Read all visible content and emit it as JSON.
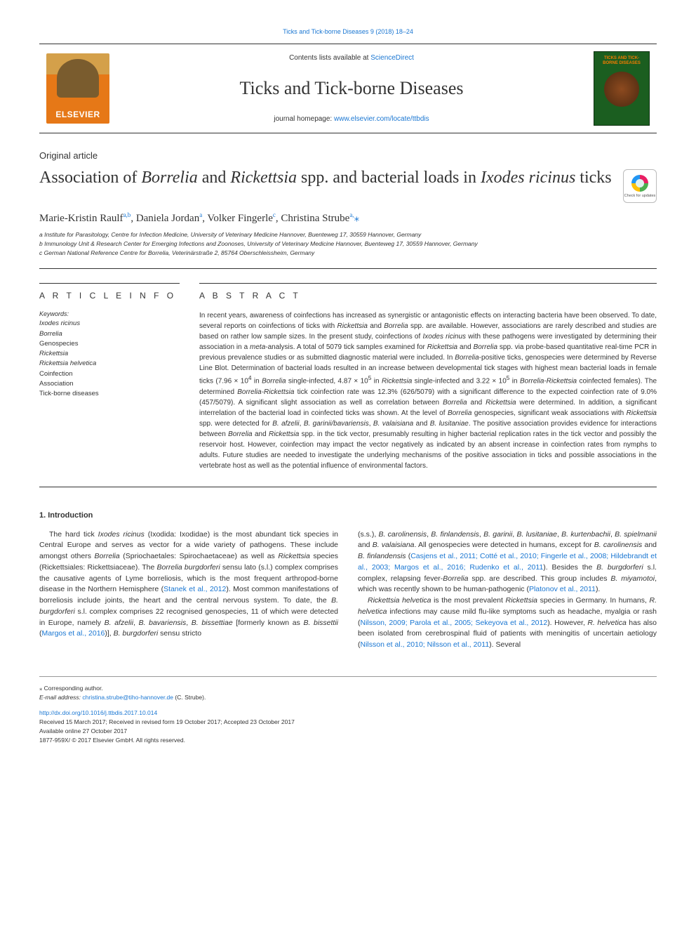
{
  "colors": {
    "link": "#1976d2",
    "text": "#333333",
    "rule": "#333333",
    "elsevier_orange": "#e67817",
    "cover_green": "#1b5e20",
    "cover_accent": "#f57c00"
  },
  "header": {
    "citation": "Ticks and Tick-borne Diseases 9 (2018) 18–24",
    "contents_prefix": "Contents lists available at ",
    "contents_link": "ScienceDirect",
    "journal_title": "Ticks and Tick-borne Diseases",
    "homepage_prefix": "journal homepage: ",
    "homepage_link": "www.elsevier.com/locate/ttbdis",
    "elsevier_label": "ELSEVIER",
    "cover_label": "TICKS AND TICK-BORNE DISEASES"
  },
  "article": {
    "type": "Original article",
    "title_html": "Association of <span class='italic'>Borrelia</span> and <span class='italic'>Rickettsia</span> spp. and bacterial loads in <span class='italic'>Ixodes ricinus</span> ticks",
    "crossmark_label": "Check for updates",
    "authors_html": "Marie-Kristin Raulf<sup>a,b</sup>, Daniela Jordan<sup>a</sup>, Volker Fingerle<sup>c</sup>, Christina Strube<sup>a,</sup><span class='corr'>⁎</span>",
    "affiliations": [
      "a Institute for Parasitology, Centre for Infection Medicine, University of Veterinary Medicine Hannover, Buenteweg 17, 30559 Hannover, Germany",
      "b Immunology Unit & Research Center for Emerging Infections and Zoonoses, University of Veterinary Medicine Hannover, Buenteweg 17, 30559 Hannover, Germany",
      "c German National Reference Centre for Borrelia, Veterinärstraße 2, 85764 Oberschleissheim, Germany"
    ]
  },
  "info": {
    "heading": "A R T I C L E  I N F O",
    "keywords_label": "Keywords:",
    "keywords": [
      "Ixodes ricinus",
      "Borrelia",
      "Genospecies",
      "Rickettsia",
      "Rickettsia helvetica",
      "Coinfection",
      "Association",
      "Tick-borne diseases"
    ]
  },
  "abstract": {
    "heading": "A B S T R A C T",
    "text_html": "In recent years, awareness of coinfections has increased as synergistic or antagonistic effects on interacting bacteria have been observed. To date, several reports on coinfections of ticks with <span class='italic'>Rickettsia</span> and <span class='italic'>Borrelia</span> spp. are available. However, associations are rarely described and studies are based on rather low sample sizes. In the present study, coinfections of <span class='italic'>Ixodes ricinus</span> with these pathogens were investigated by determining their association in a <span class='italic'>meta</span>-analysis. A total of 5079 tick samples examined for <span class='italic'>Rickettsia</span> and <span class='italic'>Borrelia</span> spp. via probe-based quantitative real-time PCR in previous prevalence studies or as submitted diagnostic material were included. In <span class='italic'>Borrelia</span>-positive ticks, genospecies were determined by Reverse Line Blot. Determination of bacterial loads resulted in an increase between developmental tick stages with highest mean bacterial loads in female ticks (7.96 × 10<sup>4</sup> in <span class='italic'>Borrelia</span> single-infected, 4.87 × 10<sup>5</sup> in <span class='italic'>Rickettsia</span> single-infected and 3.22 × 10<sup>5</sup> in <span class='italic'>Borrelia-Rickettsia</span> coinfected females). The determined <span class='italic'>Borrelia-Rickettsia</span> tick coinfection rate was 12.3% (626/5079) with a significant difference to the expected coinfection rate of 9.0% (457/5079). A significant slight association as well as correlation between <span class='italic'>Borrelia</span> and <span class='italic'>Rickettsia</span> were determined. In addition, a significant interrelation of the bacterial load in coinfected ticks was shown. At the level of <span class='italic'>Borrelia</span> genospecies, significant weak associations with <span class='italic'>Rickettsia</span> spp. were detected for <span class='italic'>B. afzelii</span>, <span class='italic'>B. garinii/bavariensis</span>, <span class='italic'>B. valaisiana</span> and <span class='italic'>B. lusitaniae</span>. The positive association provides evidence for interactions between <span class='italic'>Borrelia</span> and <span class='italic'>Rickettsia</span> spp. in the tick vector, presumably resulting in higher bacterial replication rates in the tick vector and possibly the reservoir host. However, coinfection may impact the vector negatively as indicated by an absent increase in coinfection rates from nymphs to adults. Future studies are needed to investigate the underlying mechanisms of the positive association in ticks and possible associations in the vertebrate host as well as the potential influence of environmental factors."
  },
  "body": {
    "section_heading": "1. Introduction",
    "col1_html": "The hard tick <span class='italic'>Ixodes ricinus</span> (Ixodida: Ixodidae) is the most abundant tick species in Central Europe and serves as vector for a wide variety of pathogens. These include amongst others <span class='italic'>Borrelia</span> (Spriochaetales: Spirochaetaceae) as well as <span class='italic'>Rickettsia</span> species (Rickettsiales: Rickettsiaceae). The <span class='italic'>Borrelia burgdorferi</span> sensu lato (s.l.) complex comprises the causative agents of Lyme borreliosis, which is the most frequent arthropod-borne disease in the Northern Hemisphere (<span class='link'>Stanek et al., 2012</span>). Most common manifestations of borreliosis include joints, the heart and the central nervous system. To date, the <span class='italic'>B. burgdorferi</span> s.l. complex comprises 22 recognised genospecies, 11 of which were detected in Europe, namely <span class='italic'>B. afzelii</span>, <span class='italic'>B. bavariensis</span>, <span class='italic'>B. bissettiae</span> [formerly known as <span class='italic'>B. bissettii</span> (<span class='link'>Margos et al., 2016</span>)], <span class='italic'>B. burgdorferi</span> sensu stricto",
    "col2_html": "(s.s.), <span class='italic'>B. carolinensis</span>, <span class='italic'>B. finlandensis</span>, <span class='italic'>B. garinii</span>, <span class='italic'>B. lusitaniae</span>, <span class='italic'>B. kurtenbachii</span>, <span class='italic'>B. spielmanii</span> and <span class='italic'>B. valaisiana</span>. All genospecies were detected in humans, except for <span class='italic'>B. carolinensis</span> and <span class='italic'>B. finlandensis</span> (<span class='link'>Casjens et al., 2011; Cotté et al., 2010; Fingerle et al., 2008; Hildebrandt et al., 2003; Margos et al., 2016; Rudenko et al., 2011</span>). Besides the <span class='italic'>B. burgdorferi</span> s.l. complex, relapsing fever-<span class='italic'>Borrelia</span> spp. are described. This group includes <span class='italic'>B. miyamotoi</span>, which was recently shown to be human-pathogenic (<span class='link'>Platonov et al., 2011</span>).<br><span style='display:inline-block;width:14px;'></span><span class='italic'>Rickettsia helvetica</span> is the most prevalent <span class='italic'>Rickettsia</span> species in Germany. In humans, <span class='italic'>R. helvetica</span> infections may cause mild flu-like symptoms such as headache, myalgia or rash (<span class='link'>Nilsson, 2009; Parola et al., 2005; Sekeyova et al., 2012</span>). However, <span class='italic'>R. helvetica</span> has also been isolated from cerebrospinal fluid of patients with meningitis of uncertain aetiology (<span class='link'>Nilsson et al., 2010; Nilsson et al., 2011</span>). Several"
  },
  "footer": {
    "corr_marker": "⁎ Corresponding author.",
    "email_label": "E-mail address: ",
    "email": "christina.strube@tiho-hannover.de",
    "email_suffix": " (C. Strube).",
    "doi": "http://dx.doi.org/10.1016/j.ttbdis.2017.10.014",
    "received": "Received 15 March 2017; Received in revised form 19 October 2017; Accepted 23 October 2017",
    "available": "Available online 27 October 2017",
    "copyright": "1877-959X/ © 2017 Elsevier GmbH. All rights reserved."
  }
}
